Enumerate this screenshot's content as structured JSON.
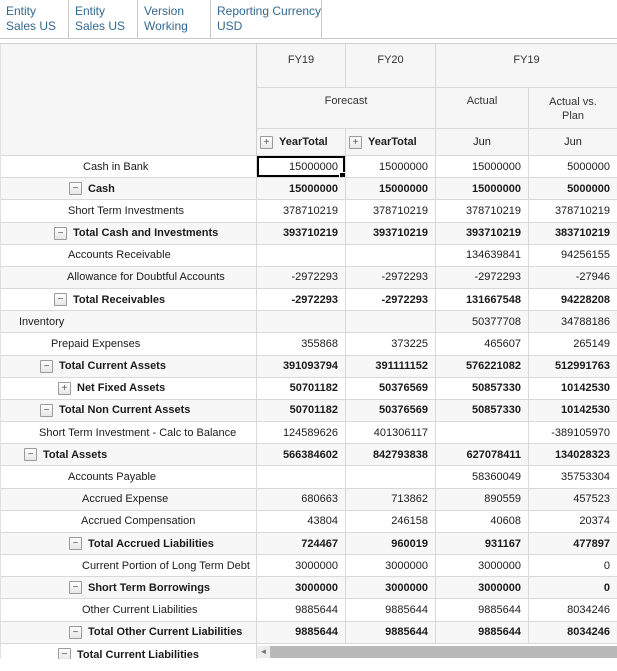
{
  "pov": {
    "segments": [
      {
        "dimension": "Entity",
        "member": "Sales US"
      },
      {
        "dimension": "Entity",
        "member": "Sales US"
      },
      {
        "dimension": "Version",
        "member": "Working"
      },
      {
        "dimension": "Reporting Currency",
        "member": "USD"
      }
    ]
  },
  "header": {
    "years": [
      {
        "label": "FY19"
      },
      {
        "label": "FY20"
      },
      {
        "label": "FY19"
      }
    ],
    "scenarios": [
      {
        "label": "Forecast"
      },
      {
        "label": "Actual"
      },
      {
        "label": "Actual vs. Plan"
      }
    ],
    "periods": [
      {
        "label": "YearTotal",
        "expandable": true
      },
      {
        "label": "YearTotal",
        "expandable": true
      },
      {
        "label": "Jun",
        "expandable": false
      },
      {
        "label": "Jun",
        "expandable": false
      }
    ],
    "expand_glyph": "+"
  },
  "rows": [
    {
      "label": "Cash in Bank",
      "indent": 82,
      "bold": false,
      "icon": null,
      "values": [
        "15000000",
        "15000000",
        "15000000",
        "5000000"
      ]
    },
    {
      "label": "Cash",
      "indent": 68,
      "bold": true,
      "icon": "minus",
      "values": [
        "15000000",
        "15000000",
        "15000000",
        "5000000"
      ]
    },
    {
      "label": "Short Term Investments",
      "indent": 67,
      "bold": false,
      "icon": null,
      "values": [
        "378710219",
        "378710219",
        "378710219",
        "378710219"
      ]
    },
    {
      "label": "Total Cash and Investments",
      "indent": 53,
      "bold": true,
      "icon": "minus",
      "values": [
        "393710219",
        "393710219",
        "393710219",
        "383710219"
      ]
    },
    {
      "label": "Accounts Receivable",
      "indent": 67,
      "bold": false,
      "icon": null,
      "values": [
        "",
        "",
        "134639841",
        "94256155"
      ]
    },
    {
      "label": "Allowance for Doubtful Accounts",
      "indent": 66,
      "bold": false,
      "icon": null,
      "values": [
        "-2972293",
        "-2972293",
        "-2972293",
        "-27946"
      ]
    },
    {
      "label": "Total Receivables",
      "indent": 53,
      "bold": true,
      "icon": "minus",
      "values": [
        "-2972293",
        "-2972293",
        "131667548",
        "94228208"
      ]
    },
    {
      "label": "Inventory",
      "indent": 18,
      "bold": false,
      "icon": null,
      "values": [
        "",
        "",
        "50377708",
        "34788186"
      ]
    },
    {
      "label": "Prepaid Expenses",
      "indent": 50,
      "bold": false,
      "icon": null,
      "values": [
        "355868",
        "373225",
        "465607",
        "265149"
      ]
    },
    {
      "label": "Total Current Assets",
      "indent": 39,
      "bold": true,
      "icon": "minus",
      "values": [
        "391093794",
        "391111152",
        "576221082",
        "512991763"
      ]
    },
    {
      "label": "Net Fixed Assets",
      "indent": 57,
      "bold": true,
      "icon": "plus",
      "values": [
        "50701182",
        "50376569",
        "50857330",
        "10142530"
      ]
    },
    {
      "label": "Total Non Current Assets",
      "indent": 39,
      "bold": true,
      "icon": "minus",
      "values": [
        "50701182",
        "50376569",
        "50857330",
        "10142530"
      ]
    },
    {
      "label": "Short Term Investment - Calc to Balance",
      "indent": 38,
      "bold": false,
      "icon": null,
      "values": [
        "124589626",
        "401306117",
        "",
        "-389105970"
      ]
    },
    {
      "label": "Total Assets",
      "indent": 23,
      "bold": true,
      "icon": "minus",
      "values": [
        "566384602",
        "842793838",
        "627078411",
        "134028323"
      ]
    },
    {
      "label": "Accounts Payable",
      "indent": 67,
      "bold": false,
      "icon": null,
      "values": [
        "",
        "",
        "58360049",
        "35753304"
      ]
    },
    {
      "label": "Accrued Expense",
      "indent": 81,
      "bold": false,
      "icon": null,
      "values": [
        "680663",
        "713862",
        "890559",
        "457523"
      ]
    },
    {
      "label": "Accrued Compensation",
      "indent": 80,
      "bold": false,
      "icon": null,
      "values": [
        "43804",
        "246158",
        "40608",
        "20374"
      ]
    },
    {
      "label": "Total Accrued Liabilities",
      "indent": 68,
      "bold": true,
      "icon": "minus",
      "values": [
        "724467",
        "960019",
        "931167",
        "477897"
      ]
    },
    {
      "label": "Current Portion of Long Term Debt",
      "indent": 81,
      "bold": false,
      "icon": null,
      "values": [
        "3000000",
        "3000000",
        "3000000",
        "0"
      ]
    },
    {
      "label": "Short Term Borrowings",
      "indent": 68,
      "bold": true,
      "icon": "minus",
      "values": [
        "3000000",
        "3000000",
        "3000000",
        "0"
      ]
    },
    {
      "label": "Other Current Liabilities",
      "indent": 81,
      "bold": false,
      "icon": null,
      "values": [
        "9885644",
        "9885644",
        "9885644",
        "8034246"
      ]
    },
    {
      "label": "Total Other Current Liabilities",
      "indent": 68,
      "bold": true,
      "icon": "minus",
      "values": [
        "9885644",
        "9885644",
        "9885644",
        "8034246"
      ]
    }
  ],
  "partial_row": {
    "label": "Total Current Liabilities",
    "indent": 57,
    "bold": true,
    "icon": "minus"
  },
  "selection": {
    "row": 0,
    "col": 0
  },
  "scrollbar": {
    "left_arrow_glyph": "◄"
  },
  "colors": {
    "pov_text": "#33688f",
    "grid_line": "#d9d9d9",
    "header_bg": "#f6f6f6",
    "stripe_bg": "#f7f7f7",
    "selection_border": "#000000",
    "scroll_thumb": "#b9b9b9"
  }
}
